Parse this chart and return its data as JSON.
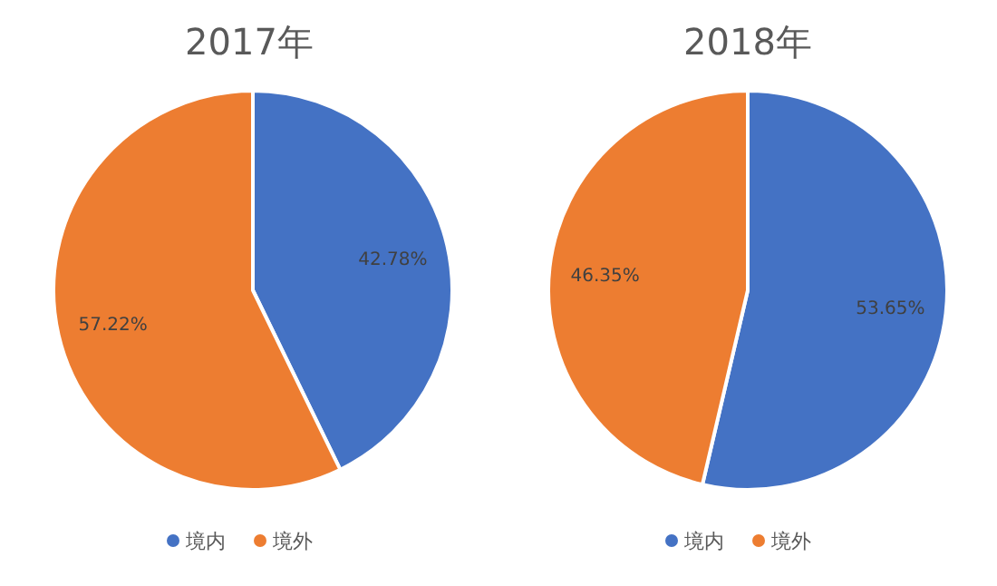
{
  "chart_data": [
    {
      "type": "pie",
      "title": "2017年",
      "categories": [
        "境内",
        "境外"
      ],
      "values": [
        42.78,
        57.22
      ],
      "colors": [
        "#4472c4",
        "#ed7d31"
      ],
      "value_labels": [
        "42.78%",
        "57.22%"
      ],
      "legend": "bottom"
    },
    {
      "type": "pie",
      "title": "2018年",
      "categories": [
        "境内",
        "境外"
      ],
      "values": [
        53.65,
        46.35
      ],
      "colors": [
        "#4472c4",
        "#ed7d31"
      ],
      "value_labels": [
        "53.65%",
        "46.35%"
      ],
      "legend": "bottom"
    }
  ]
}
